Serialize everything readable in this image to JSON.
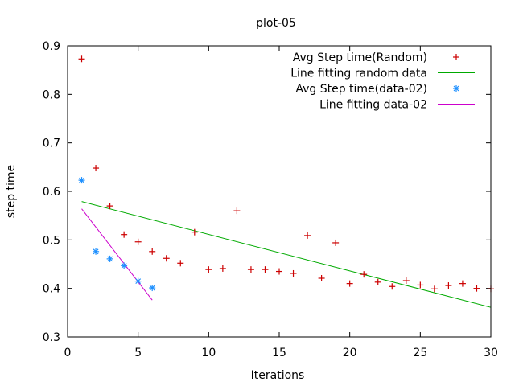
{
  "chart_data": {
    "type": "scatter",
    "title": "plot-05",
    "xlabel": "Iterations",
    "ylabel": "step time",
    "xlim": [
      0,
      30
    ],
    "ylim": [
      0.3,
      0.9
    ],
    "xticks": [
      0,
      5,
      10,
      15,
      20,
      25,
      30
    ],
    "yticks": [
      0.3,
      0.4,
      0.5,
      0.6,
      0.7,
      0.8,
      0.9
    ],
    "xtick_labels": [
      "0",
      "5",
      "10",
      "15",
      "20",
      "25",
      "30"
    ],
    "ytick_labels": [
      "0.3",
      "0.4",
      "0.5",
      "0.6",
      "0.7",
      "0.8",
      "0.9"
    ],
    "legend_position": "top-right",
    "series": [
      {
        "name": "Avg Step time(Random)",
        "kind": "points",
        "marker": "plus",
        "color": "#cc0000",
        "x": [
          1,
          2,
          3,
          4,
          5,
          6,
          7,
          8,
          9,
          10,
          11,
          12,
          13,
          14,
          15,
          16,
          17,
          18,
          19,
          20,
          21,
          22,
          23,
          24,
          25,
          26,
          27,
          28,
          29,
          30
        ],
        "y": [
          0.873,
          0.648,
          0.57,
          0.511,
          0.496,
          0.476,
          0.462,
          0.452,
          0.516,
          0.439,
          0.441,
          0.56,
          0.439,
          0.439,
          0.435,
          0.431,
          0.509,
          0.421,
          0.494,
          0.41,
          0.429,
          0.413,
          0.404,
          0.416,
          0.407,
          0.399,
          0.406,
          0.41,
          0.4,
          0.399
        ]
      },
      {
        "name": "Line fitting random data",
        "kind": "line",
        "color": "#00aa00",
        "x": [
          1,
          30
        ],
        "y": [
          0.579,
          0.361
        ]
      },
      {
        "name": "Avg Step time(data-02)",
        "kind": "points",
        "marker": "star",
        "color": "#1e90ff",
        "x": [
          1,
          2,
          3,
          4,
          5,
          6
        ],
        "y": [
          0.623,
          0.476,
          0.461,
          0.447,
          0.415,
          0.401
        ]
      },
      {
        "name": "Line fitting data-02",
        "kind": "line",
        "color": "#cc00cc",
        "x": [
          1,
          6
        ],
        "y": [
          0.564,
          0.376
        ]
      }
    ]
  }
}
